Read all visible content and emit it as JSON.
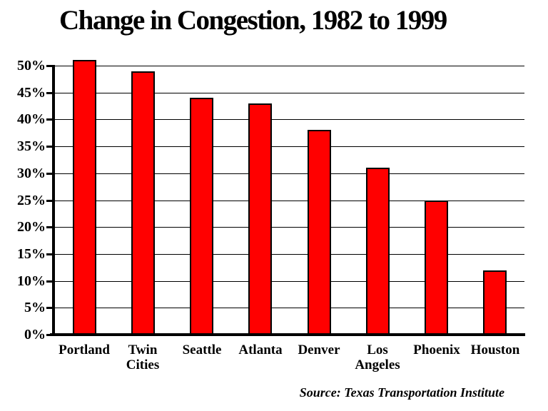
{
  "slide": {
    "title": "Change in Congestion, 1982 to 1999",
    "source": "Source: Texas Transportation Institute"
  },
  "chart_data": {
    "type": "bar",
    "title": "Change in Congestion, 1982 to 1999",
    "categories": [
      "Portland",
      "Twin\nCities",
      "Seattle",
      "Atlanta",
      "Denver",
      "Los\nAngeles",
      "Phoenix",
      "Houston"
    ],
    "values": [
      51,
      49,
      44,
      43,
      38,
      31,
      25,
      12
    ],
    "unit": "%",
    "xlabel": "",
    "ylabel": "",
    "ylim": [
      0,
      52
    ],
    "y_ticks": [
      0,
      5,
      10,
      15,
      20,
      25,
      30,
      35,
      40,
      45,
      50
    ],
    "y_tick_labels": [
      "0%",
      "5%",
      "10%",
      "15%",
      "20%",
      "25%",
      "30%",
      "35%",
      "40%",
      "45%",
      "50%"
    ],
    "grid": true,
    "legend": false,
    "bar_color": "#ff0000",
    "bar_border_color": "#000000",
    "text_color": "#000000",
    "source": "Source: Texas Transportation Institute"
  }
}
